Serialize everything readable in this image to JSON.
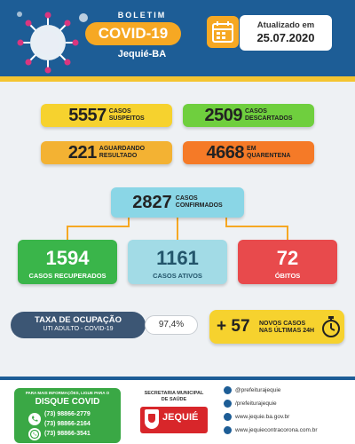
{
  "header": {
    "bulletin": "BOLETIM",
    "title": "COVID-19",
    "city": "Jequié-BA",
    "updated_label": "Atualizado em",
    "updated_date": "25.07.2020"
  },
  "stats": {
    "suspects": {
      "value": "5557",
      "label_1": "CASOS",
      "label_2": "SUSPEITOS"
    },
    "discarded": {
      "value": "2509",
      "label_1": "CASOS",
      "label_2": "DESCARTADOS"
    },
    "awaiting": {
      "value": "221",
      "label_1": "AGUARDANDO",
      "label_2": "RESULTADO"
    },
    "quarantine": {
      "value": "4668",
      "label_1": "EM",
      "label_2": "QUARENTENA"
    },
    "confirmed": {
      "value": "2827",
      "label_1": "CASOS",
      "label_2": "CONFIRMADOS"
    },
    "recovered": {
      "value": "1594",
      "label": "CASOS RECUPERADOS"
    },
    "active": {
      "value": "1161",
      "label": "CASOS ATIVOS"
    },
    "deaths": {
      "value": "72",
      "label": "ÓBITOS"
    }
  },
  "occupancy": {
    "title": "TAXA DE OCUPAÇÃO",
    "subtitle": "UTI ADULTO - COVID-19",
    "value": "97,4%"
  },
  "new_cases": {
    "value": "+ 57",
    "label_1": "NOVOS CASOS",
    "label_2": "NAS ÚLTIMAS 24H"
  },
  "footer": {
    "more_info": "PARA MAIS INFORMAÇÕES, LIGUE PARA O",
    "dial_title": "DISQUE COVID",
    "phones": [
      "(73) 98866-2779",
      "(73) 98866-2164",
      "(73) 98866-3541"
    ],
    "secretaria_1": "SECRETARIA MUNICIPAL",
    "secretaria_2": "DE SAÚDE",
    "logo_name": "JEQUIÉ",
    "social": [
      {
        "icon": "instagram-icon",
        "text": "@prefeiturajequie"
      },
      {
        "icon": "facebook-icon",
        "text": "/prefeiturajequie"
      },
      {
        "icon": "globe-icon",
        "text": "www.jequie.ba.gov.br"
      },
      {
        "icon": "globe-icon",
        "text": "www.jequiecontracorona.com.br"
      }
    ]
  },
  "colors": {
    "header_blue": "#1d5d96",
    "accent_orange": "#f6a823",
    "yellow": "#f6d22e",
    "green": "#6fcf3e",
    "recovered_green": "#3ab54a",
    "active_cyan": "#a2dbe6",
    "deaths_red": "#e84a4c",
    "quarantine_orange": "#f57a27"
  }
}
